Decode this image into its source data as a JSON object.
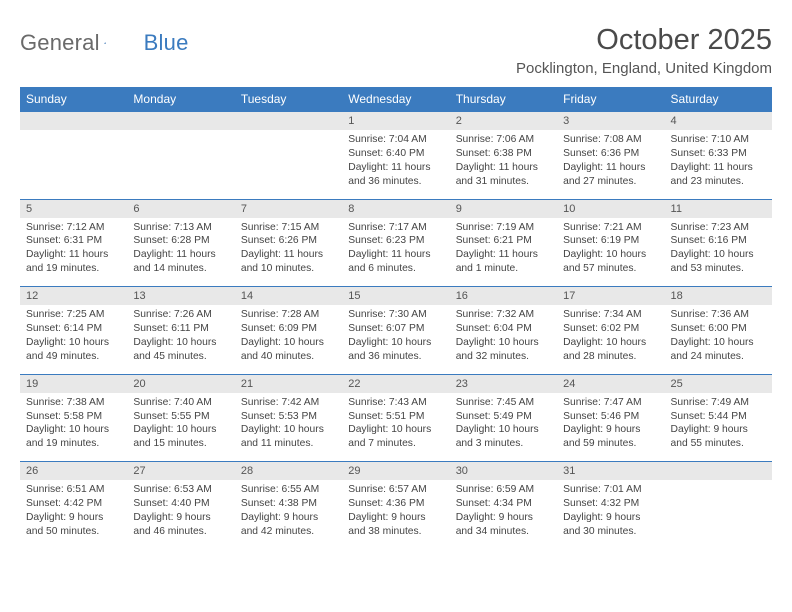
{
  "brand": {
    "part1": "General",
    "part2": "Blue"
  },
  "title": "October 2025",
  "location": "Pocklington, England, United Kingdom",
  "colors": {
    "header_bg": "#3b7bbf",
    "header_text": "#ffffff",
    "daynum_bg": "#e8e8e8",
    "border": "#3b7bbf"
  },
  "day_labels": [
    "Sunday",
    "Monday",
    "Tuesday",
    "Wednesday",
    "Thursday",
    "Friday",
    "Saturday"
  ],
  "weeks": [
    [
      null,
      null,
      null,
      {
        "n": "1",
        "sr": "Sunrise: 7:04 AM",
        "ss": "Sunset: 6:40 PM",
        "dl": "Daylight: 11 hours and 36 minutes."
      },
      {
        "n": "2",
        "sr": "Sunrise: 7:06 AM",
        "ss": "Sunset: 6:38 PM",
        "dl": "Daylight: 11 hours and 31 minutes."
      },
      {
        "n": "3",
        "sr": "Sunrise: 7:08 AM",
        "ss": "Sunset: 6:36 PM",
        "dl": "Daylight: 11 hours and 27 minutes."
      },
      {
        "n": "4",
        "sr": "Sunrise: 7:10 AM",
        "ss": "Sunset: 6:33 PM",
        "dl": "Daylight: 11 hours and 23 minutes."
      }
    ],
    [
      {
        "n": "5",
        "sr": "Sunrise: 7:12 AM",
        "ss": "Sunset: 6:31 PM",
        "dl": "Daylight: 11 hours and 19 minutes."
      },
      {
        "n": "6",
        "sr": "Sunrise: 7:13 AM",
        "ss": "Sunset: 6:28 PM",
        "dl": "Daylight: 11 hours and 14 minutes."
      },
      {
        "n": "7",
        "sr": "Sunrise: 7:15 AM",
        "ss": "Sunset: 6:26 PM",
        "dl": "Daylight: 11 hours and 10 minutes."
      },
      {
        "n": "8",
        "sr": "Sunrise: 7:17 AM",
        "ss": "Sunset: 6:23 PM",
        "dl": "Daylight: 11 hours and 6 minutes."
      },
      {
        "n": "9",
        "sr": "Sunrise: 7:19 AM",
        "ss": "Sunset: 6:21 PM",
        "dl": "Daylight: 11 hours and 1 minute."
      },
      {
        "n": "10",
        "sr": "Sunrise: 7:21 AM",
        "ss": "Sunset: 6:19 PM",
        "dl": "Daylight: 10 hours and 57 minutes."
      },
      {
        "n": "11",
        "sr": "Sunrise: 7:23 AM",
        "ss": "Sunset: 6:16 PM",
        "dl": "Daylight: 10 hours and 53 minutes."
      }
    ],
    [
      {
        "n": "12",
        "sr": "Sunrise: 7:25 AM",
        "ss": "Sunset: 6:14 PM",
        "dl": "Daylight: 10 hours and 49 minutes."
      },
      {
        "n": "13",
        "sr": "Sunrise: 7:26 AM",
        "ss": "Sunset: 6:11 PM",
        "dl": "Daylight: 10 hours and 45 minutes."
      },
      {
        "n": "14",
        "sr": "Sunrise: 7:28 AM",
        "ss": "Sunset: 6:09 PM",
        "dl": "Daylight: 10 hours and 40 minutes."
      },
      {
        "n": "15",
        "sr": "Sunrise: 7:30 AM",
        "ss": "Sunset: 6:07 PM",
        "dl": "Daylight: 10 hours and 36 minutes."
      },
      {
        "n": "16",
        "sr": "Sunrise: 7:32 AM",
        "ss": "Sunset: 6:04 PM",
        "dl": "Daylight: 10 hours and 32 minutes."
      },
      {
        "n": "17",
        "sr": "Sunrise: 7:34 AM",
        "ss": "Sunset: 6:02 PM",
        "dl": "Daylight: 10 hours and 28 minutes."
      },
      {
        "n": "18",
        "sr": "Sunrise: 7:36 AM",
        "ss": "Sunset: 6:00 PM",
        "dl": "Daylight: 10 hours and 24 minutes."
      }
    ],
    [
      {
        "n": "19",
        "sr": "Sunrise: 7:38 AM",
        "ss": "Sunset: 5:58 PM",
        "dl": "Daylight: 10 hours and 19 minutes."
      },
      {
        "n": "20",
        "sr": "Sunrise: 7:40 AM",
        "ss": "Sunset: 5:55 PM",
        "dl": "Daylight: 10 hours and 15 minutes."
      },
      {
        "n": "21",
        "sr": "Sunrise: 7:42 AM",
        "ss": "Sunset: 5:53 PM",
        "dl": "Daylight: 10 hours and 11 minutes."
      },
      {
        "n": "22",
        "sr": "Sunrise: 7:43 AM",
        "ss": "Sunset: 5:51 PM",
        "dl": "Daylight: 10 hours and 7 minutes."
      },
      {
        "n": "23",
        "sr": "Sunrise: 7:45 AM",
        "ss": "Sunset: 5:49 PM",
        "dl": "Daylight: 10 hours and 3 minutes."
      },
      {
        "n": "24",
        "sr": "Sunrise: 7:47 AM",
        "ss": "Sunset: 5:46 PM",
        "dl": "Daylight: 9 hours and 59 minutes."
      },
      {
        "n": "25",
        "sr": "Sunrise: 7:49 AM",
        "ss": "Sunset: 5:44 PM",
        "dl": "Daylight: 9 hours and 55 minutes."
      }
    ],
    [
      {
        "n": "26",
        "sr": "Sunrise: 6:51 AM",
        "ss": "Sunset: 4:42 PM",
        "dl": "Daylight: 9 hours and 50 minutes."
      },
      {
        "n": "27",
        "sr": "Sunrise: 6:53 AM",
        "ss": "Sunset: 4:40 PM",
        "dl": "Daylight: 9 hours and 46 minutes."
      },
      {
        "n": "28",
        "sr": "Sunrise: 6:55 AM",
        "ss": "Sunset: 4:38 PM",
        "dl": "Daylight: 9 hours and 42 minutes."
      },
      {
        "n": "29",
        "sr": "Sunrise: 6:57 AM",
        "ss": "Sunset: 4:36 PM",
        "dl": "Daylight: 9 hours and 38 minutes."
      },
      {
        "n": "30",
        "sr": "Sunrise: 6:59 AM",
        "ss": "Sunset: 4:34 PM",
        "dl": "Daylight: 9 hours and 34 minutes."
      },
      {
        "n": "31",
        "sr": "Sunrise: 7:01 AM",
        "ss": "Sunset: 4:32 PM",
        "dl": "Daylight: 9 hours and 30 minutes."
      },
      null
    ]
  ]
}
